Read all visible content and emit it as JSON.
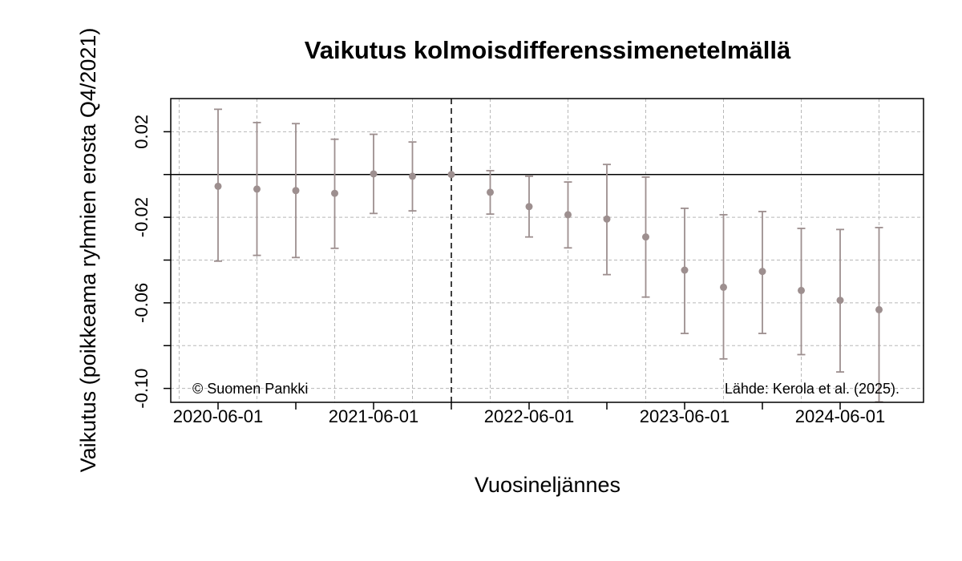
{
  "chart_data": {
    "type": "scatter",
    "title": "Vaikutus kolmoisdifferenssimenetelmällä",
    "xlabel": "Vuosineljännes",
    "ylabel": "Vaikutus (poikkeama ryhmien erosta Q4/2021)",
    "x_tick_labels": [
      "2020-06-01",
      "2021-06-01",
      "2022-06-01",
      "2023-06-01",
      "2024-06-01"
    ],
    "y_tick_labels": [
      "0.02",
      "-0.02",
      "-0.06",
      "-0.10"
    ],
    "y_ticks": [
      0.02,
      -0.02,
      -0.06,
      -0.1
    ],
    "ylim": [
      -0.1065,
      0.0355
    ],
    "grid": true,
    "reference_line_y": 0,
    "reference_quarter": "2021-12-01",
    "annotations": {
      "copyright": "© Suomen Pankki",
      "source": "Lähde: Kerola et al. (2025)."
    },
    "series": [
      {
        "x": [
          "2020-06-01",
          "2020-09-01",
          "2020-12-01",
          "2021-03-01",
          "2021-06-01",
          "2021-09-01",
          "2021-12-01",
          "2022-03-01",
          "2022-06-01",
          "2022-09-01",
          "2022-12-01",
          "2023-03-01",
          "2023-06-01",
          "2023-09-01",
          "2023-12-01",
          "2024-03-01",
          "2024-06-01",
          "2024-09-01"
        ],
        "estimate": [
          -0.0055,
          -0.0068,
          -0.0075,
          -0.0088,
          0.0003,
          -0.0008,
          0.0,
          -0.0083,
          -0.015,
          -0.0188,
          -0.0208,
          -0.0292,
          -0.0447,
          -0.0527,
          -0.0453,
          -0.0542,
          -0.0588,
          -0.0632
        ],
        "lower": [
          -0.0405,
          -0.0378,
          -0.0388,
          -0.0345,
          -0.0182,
          -0.017,
          0.0,
          -0.0185,
          -0.0292,
          -0.0343,
          -0.0468,
          -0.0573,
          -0.0743,
          -0.0862,
          -0.0743,
          -0.0842,
          -0.0923,
          -0.1063
        ],
        "upper": [
          0.0305,
          0.0243,
          0.0238,
          0.0165,
          0.0188,
          0.0152,
          0.0,
          0.0018,
          -0.0008,
          -0.0035,
          0.0047,
          -0.0012,
          -0.0158,
          -0.0188,
          -0.0173,
          -0.0252,
          -0.0257,
          -0.0248
        ]
      }
    ]
  }
}
